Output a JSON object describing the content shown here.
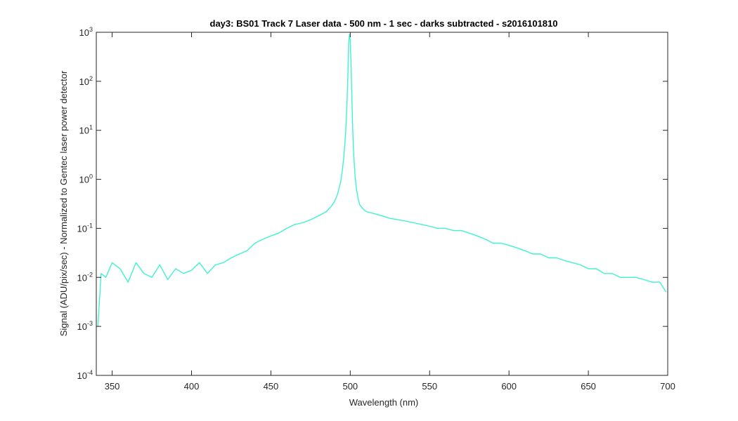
{
  "chart_data": {
    "type": "line",
    "title": "day3: BS01  Track 7 Laser data - 500 nm - 1 sec - darks subtracted - s2016101810",
    "xlabel": "Wavelength (nm)",
    "ylabel": "Signal (ADU/pix/sec) - Normalized to Gentec laser power detector",
    "xlim": [
      340,
      700
    ],
    "ylim": [
      0.0001,
      1000
    ],
    "yscale": "log",
    "grid": false,
    "line_color": "#3ff3cf",
    "x_ticks": [
      {
        "value": 350,
        "label": "350"
      },
      {
        "value": 400,
        "label": "400"
      },
      {
        "value": 450,
        "label": "450"
      },
      {
        "value": 500,
        "label": "500"
      },
      {
        "value": 550,
        "label": "550"
      },
      {
        "value": 600,
        "label": "600"
      },
      {
        "value": 650,
        "label": "650"
      },
      {
        "value": 700,
        "label": "700"
      }
    ],
    "y_ticks": [
      {
        "value": 0.0001,
        "base": "10",
        "exp": "-4"
      },
      {
        "value": 0.001,
        "base": "10",
        "exp": "-3"
      },
      {
        "value": 0.01,
        "base": "10",
        "exp": "-2"
      },
      {
        "value": 0.1,
        "base": "10",
        "exp": "-1"
      },
      {
        "value": 1,
        "base": "10",
        "exp": "0"
      },
      {
        "value": 10,
        "base": "10",
        "exp": "1"
      },
      {
        "value": 100,
        "base": "10",
        "exp": "2"
      },
      {
        "value": 1000,
        "base": "10",
        "exp": "3"
      }
    ],
    "series": [
      {
        "x": [
          341,
          343,
          346,
          350,
          355,
          360,
          365,
          370,
          375,
          380,
          385,
          390,
          395,
          400,
          405,
          410,
          415,
          420,
          425,
          430,
          435,
          440,
          445,
          450,
          455,
          460,
          465,
          470,
          475,
          480,
          485,
          488,
          490,
          492,
          494,
          495,
          496,
          497,
          498,
          498.5,
          499,
          499.5,
          500,
          500.5,
          501,
          501.5,
          502,
          503,
          504,
          505,
          506,
          508,
          510,
          515,
          520,
          525,
          530,
          535,
          540,
          545,
          550,
          555,
          560,
          565,
          570,
          575,
          580,
          585,
          590,
          595,
          600,
          605,
          610,
          615,
          620,
          625,
          630,
          635,
          640,
          645,
          650,
          655,
          660,
          665,
          670,
          675,
          680,
          685,
          690,
          695,
          699
        ],
        "y": [
          0.001,
          0.012,
          0.01,
          0.02,
          0.015,
          0.008,
          0.02,
          0.012,
          0.01,
          0.018,
          0.009,
          0.015,
          0.012,
          0.014,
          0.02,
          0.012,
          0.018,
          0.02,
          0.025,
          0.03,
          0.035,
          0.05,
          0.06,
          0.07,
          0.08,
          0.1,
          0.12,
          0.13,
          0.15,
          0.18,
          0.22,
          0.28,
          0.35,
          0.5,
          0.9,
          1.5,
          3,
          8,
          40,
          120,
          600,
          900,
          700,
          200,
          50,
          12,
          4,
          1.2,
          0.6,
          0.4,
          0.3,
          0.25,
          0.22,
          0.2,
          0.18,
          0.16,
          0.15,
          0.14,
          0.13,
          0.12,
          0.11,
          0.1,
          0.1,
          0.09,
          0.09,
          0.08,
          0.07,
          0.06,
          0.05,
          0.05,
          0.045,
          0.04,
          0.035,
          0.03,
          0.03,
          0.025,
          0.025,
          0.022,
          0.02,
          0.018,
          0.015,
          0.015,
          0.012,
          0.012,
          0.01,
          0.01,
          0.01,
          0.009,
          0.008,
          0.008,
          0.005
        ]
      }
    ]
  }
}
